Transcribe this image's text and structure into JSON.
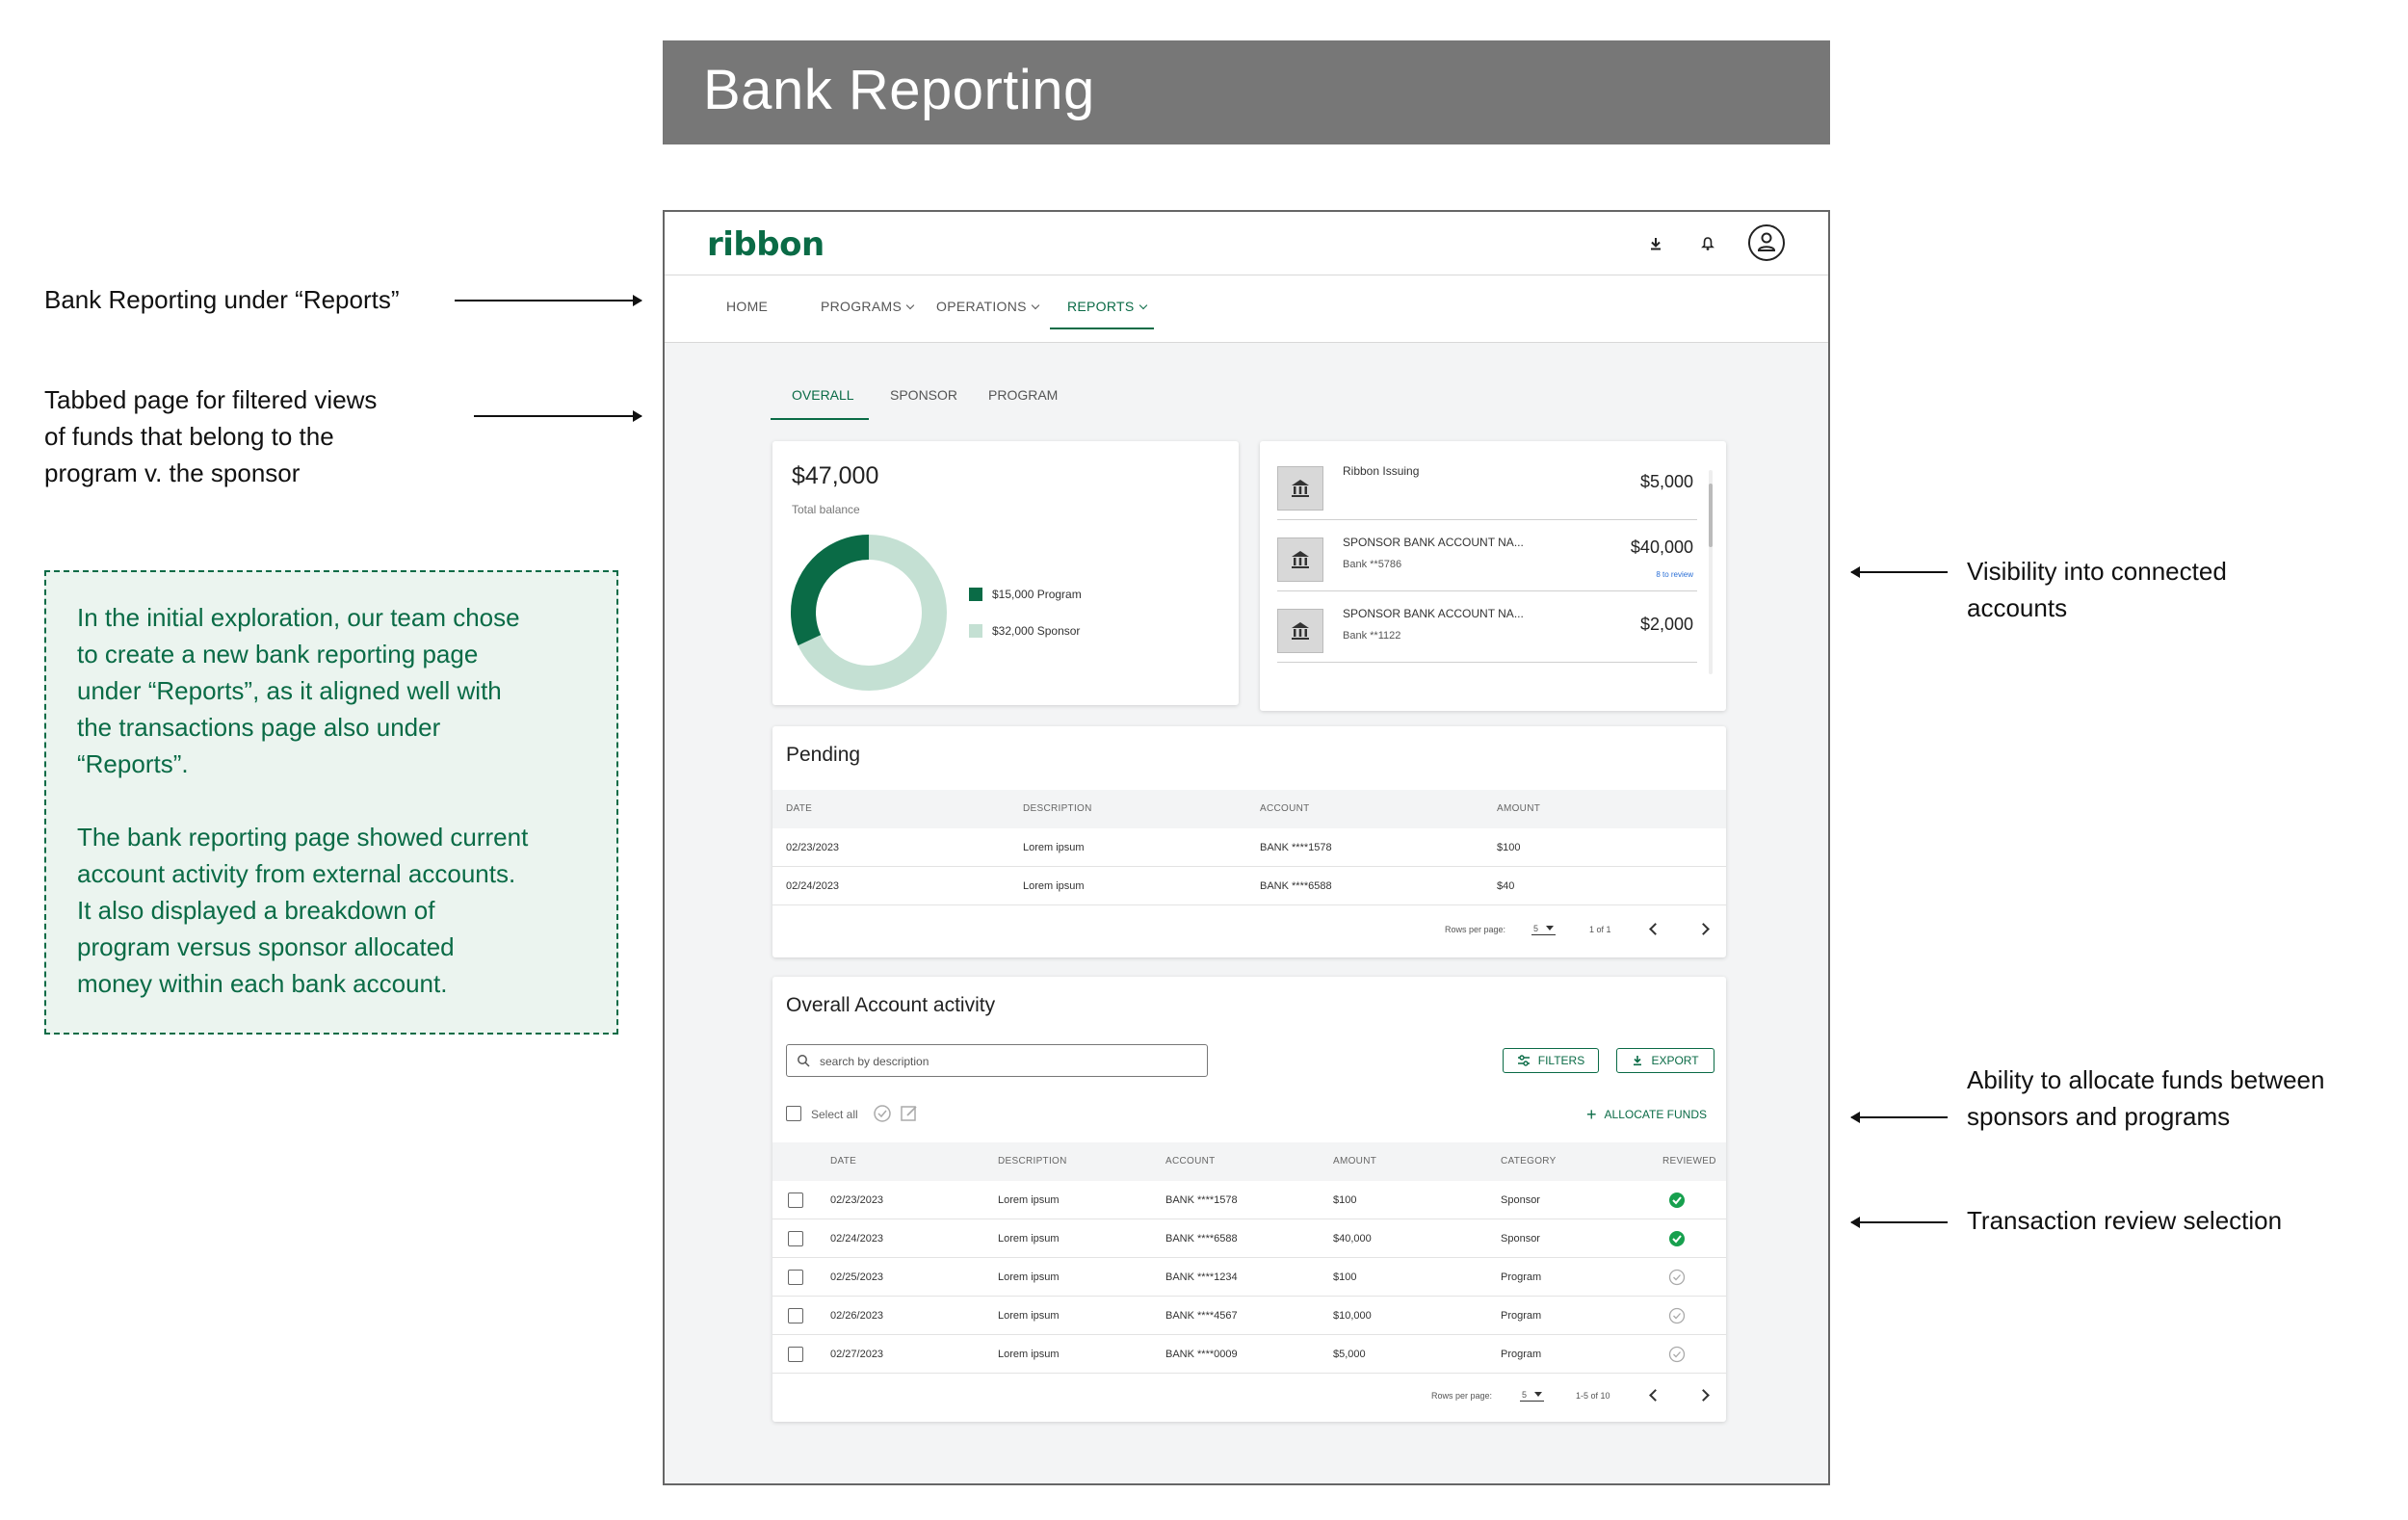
{
  "banner": {
    "title": "Bank Reporting"
  },
  "annotations": {
    "reports_nav": "Bank Reporting under “Reports”",
    "tabbed_page": [
      "Tabbed page for filtered views",
      "of funds that belong to the",
      "program v. the sponsor"
    ],
    "connected_accounts": [
      "Visibility into connected",
      "accounts"
    ],
    "allocate_funds": [
      "Ability to allocate funds between",
      "sponsors and programs"
    ],
    "review_selection": "Transaction review selection",
    "note": {
      "p1": [
        "In the initial exploration, our team chose",
        "to create a new bank reporting page",
        "under “Reports”, as it aligned well with",
        "the transactions page also under",
        "“Reports”."
      ],
      "p2": [
        "The bank reporting page showed current",
        "account activity from external accounts.",
        "It also displayed a breakdown of",
        "program versus sponsor allocated",
        "money within each bank account."
      ]
    }
  },
  "app": {
    "logo": "ribbon",
    "nav": [
      "HOME",
      "PROGRAMS",
      "OPERATIONS",
      "REPORTS"
    ],
    "tabs": [
      "OVERALL",
      "SPONSOR",
      "PROGRAM"
    ],
    "balance": {
      "amount": "$47,000",
      "label": "Total balance",
      "program_legend": "$15,000 Program",
      "sponsor_legend": "$32,000 Sponsor",
      "program_value": 15000,
      "sponsor_value": 32000,
      "program_color": "#0a6b46",
      "sponsor_color": "#c4e0d3"
    },
    "accounts": [
      {
        "name": "Ribbon Issuing",
        "sub": "",
        "amount": "$5,000",
        "review": ""
      },
      {
        "name": "SPONSOR BANK ACCOUNT NA...",
        "sub": "Bank **5786",
        "amount": "$40,000",
        "review": "8 to review"
      },
      {
        "name": "SPONSOR BANK ACCOUNT NA...",
        "sub": "Bank **1122",
        "amount": "$2,000",
        "review": ""
      }
    ],
    "pending": {
      "title": "Pending",
      "headers": [
        "DATE",
        "DESCRIPTION",
        "ACCOUNT",
        "AMOUNT"
      ],
      "rows": [
        [
          "02/23/2023",
          "Lorem ipsum",
          "BANK ****1578",
          "$100"
        ],
        [
          "02/24/2023",
          "Lorem ipsum",
          "BANK ****6588",
          "$40"
        ]
      ],
      "rows_per_page_label": "Rows per page:",
      "rows_per_page": "5",
      "range": "1 of 1"
    },
    "activity": {
      "title": "Overall Account activity",
      "search_placeholder": "search by description",
      "filters": "FILTERS",
      "export": "EXPORT",
      "select_all": "Select all",
      "allocate": "ALLOCATE FUNDS",
      "headers": [
        "DATE",
        "DESCRIPTION",
        "ACCOUNT",
        "AMOUNT",
        "CATEGORY",
        "REVIEWED"
      ],
      "rows": [
        {
          "date": "02/23/2023",
          "desc": "Lorem ipsum",
          "account": "BANK ****1578",
          "amount": "$100",
          "category": "Sponsor",
          "reviewed": true
        },
        {
          "date": "02/24/2023",
          "desc": "Lorem ipsum",
          "account": "BANK ****6588",
          "amount": "$40,000",
          "category": "Sponsor",
          "reviewed": true
        },
        {
          "date": "02/25/2023",
          "desc": "Lorem ipsum",
          "account": "BANK ****1234",
          "amount": "$100",
          "category": "Program",
          "reviewed": false
        },
        {
          "date": "02/26/2023",
          "desc": "Lorem ipsum",
          "account": "BANK ****4567",
          "amount": "$10,000",
          "category": "Program",
          "reviewed": false
        },
        {
          "date": "02/27/2023",
          "desc": "Lorem ipsum",
          "account": "BANK ****0009",
          "amount": "$5,000",
          "category": "Program",
          "reviewed": false
        }
      ],
      "rows_per_page_label": "Rows per page:",
      "rows_per_page": "5",
      "range": "1-5 of 10"
    }
  }
}
